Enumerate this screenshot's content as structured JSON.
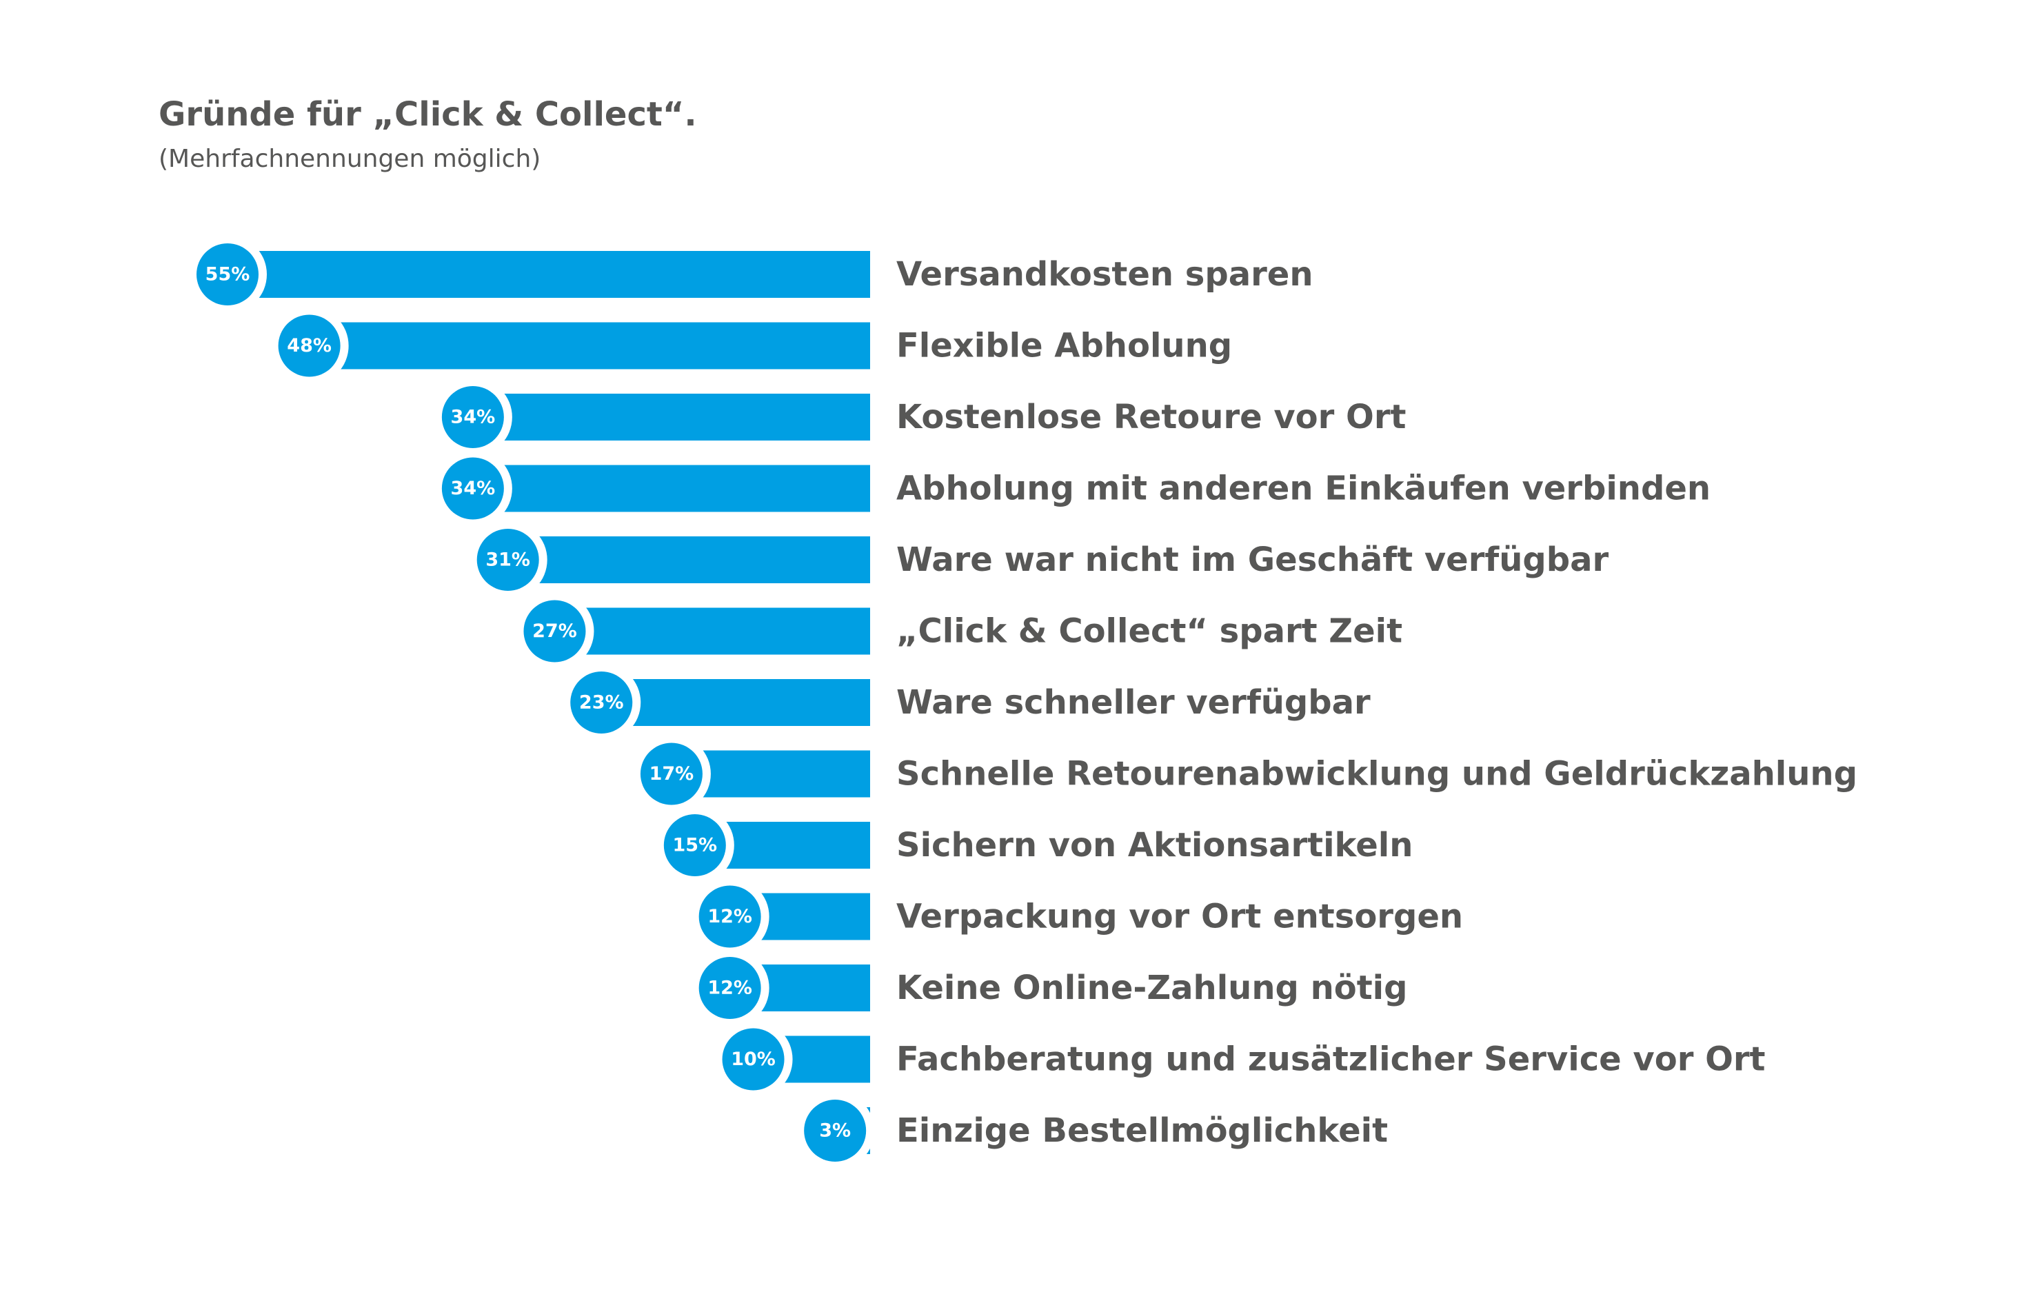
{
  "chart_data": {
    "type": "bar",
    "orientation": "horizontal",
    "title": "Gründe für „Click & Collect“.",
    "subtitle": "(Mehrfachnennungen möglich)",
    "unit": "%",
    "categories": [
      "Versandkosten sparen",
      "Flexible Abholung",
      "Kostenlose Retoure vor Ort",
      "Abholung mit anderen Einkäufen verbinden",
      "Ware war nicht im Geschäft verfügbar",
      "„Click & Collect“ spart Zeit",
      "Ware schneller verfügbar",
      "Schnelle Retourenabwicklung und Geldrückzahlung",
      "Sichern von Aktionsartikeln",
      "Verpackung vor Ort entsorgen",
      "Keine Online-Zahlung nötig",
      "Fachberatung und zusätzlicher Service vor Ort",
      "Einzige Bestellmöglichkeit"
    ],
    "values": [
      55,
      48,
      34,
      34,
      31,
      27,
      23,
      17,
      15,
      12,
      12,
      10,
      3
    ],
    "data_labels": [
      "55%",
      "48%",
      "34%",
      "34%",
      "31%",
      "27%",
      "23%",
      "17%",
      "15%",
      "12%",
      "12%",
      "10%",
      "3%"
    ],
    "xlim": [
      0,
      55
    ],
    "bar_direction": "right-anchored, extending left",
    "grid": false,
    "legend": "none",
    "colors": {
      "bar": "#009fe3",
      "label_text": "#575756",
      "data_label_text": "#ffffff",
      "background": "#ffffff"
    }
  }
}
